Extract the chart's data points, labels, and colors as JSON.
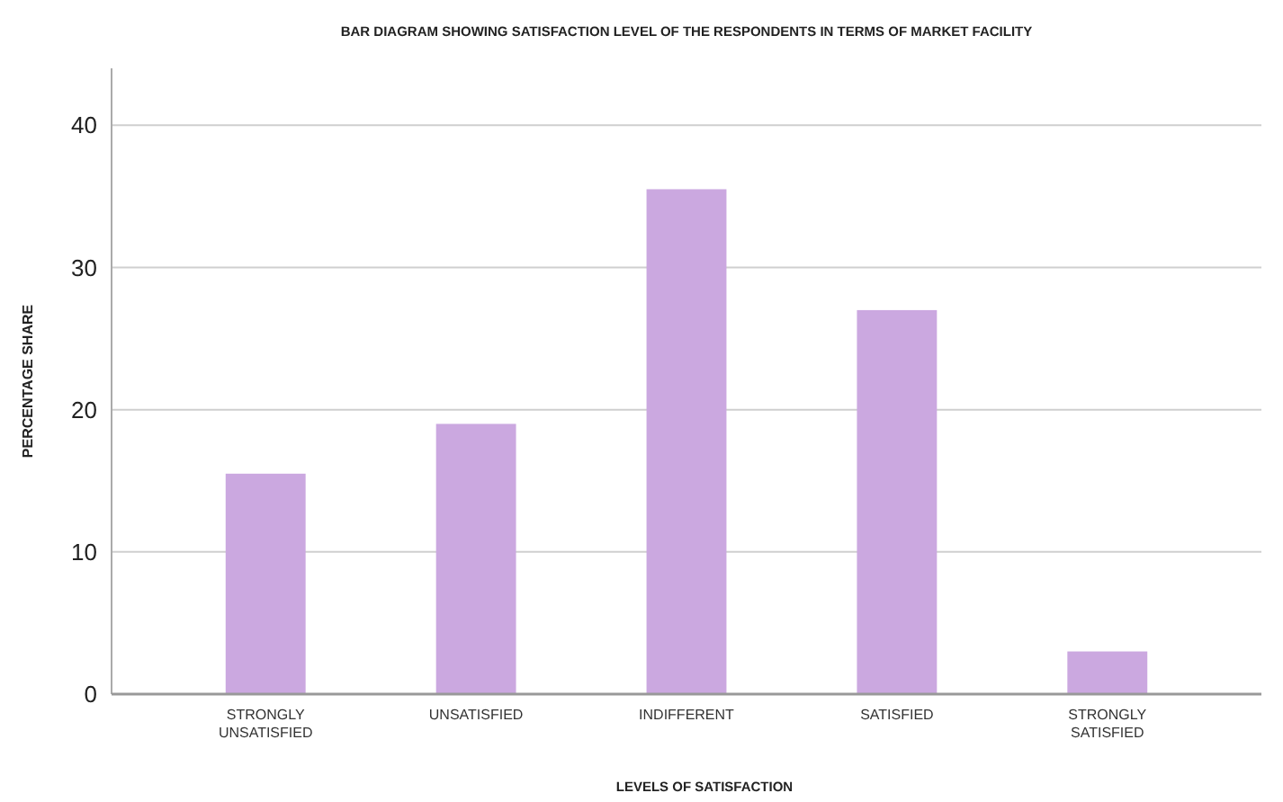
{
  "chart_data": {
    "type": "bar",
    "title": "BAR DIAGRAM SHOWING SATISFACTION LEVEL OF THE RESPONDENTS IN TERMS OF MARKET FACILITY",
    "xlabel": "LEVELS OF SATISFACTION",
    "ylabel": "PERCENTAGE SHARE",
    "categories": [
      "STRONGLY UNSATISFIED",
      "UNSATISFIED",
      "INDIFFERENT",
      "SATISFIED",
      "STRONGLY SATISFIED"
    ],
    "values": [
      15.5,
      19,
      35.5,
      27,
      3
    ],
    "color": "#cba8e0",
    "ylim": [
      0,
      44
    ],
    "yticks": [
      0,
      10,
      20,
      30,
      40
    ],
    "grid": "y"
  }
}
